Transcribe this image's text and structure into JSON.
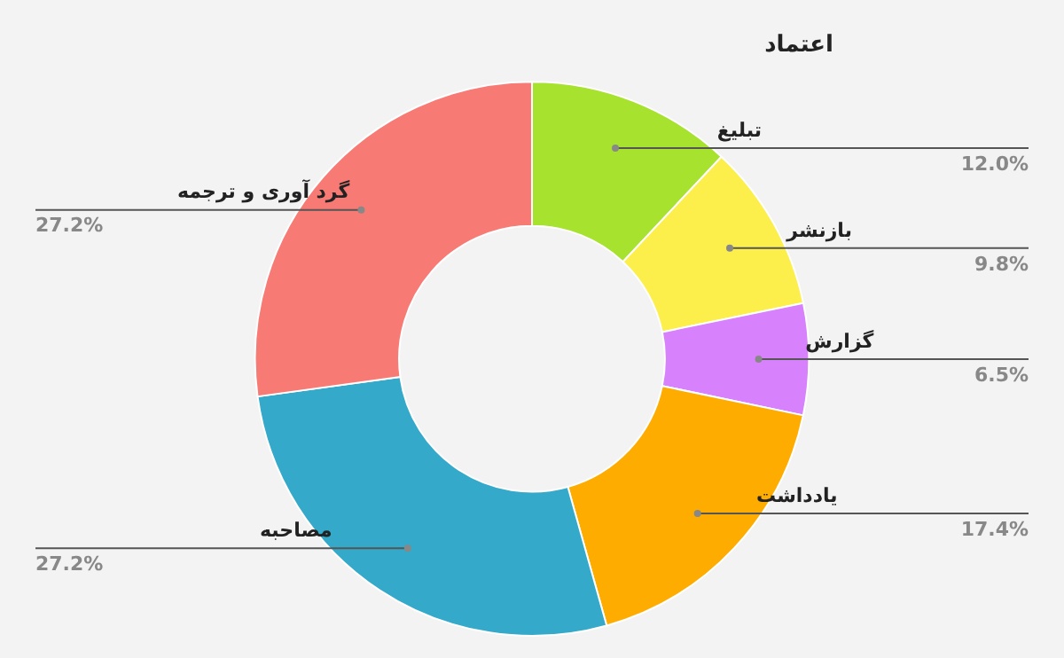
{
  "chart_data": {
    "type": "donut",
    "title": "اعتماد",
    "categories": [
      "تبلیغ",
      "بازنشر",
      "گزارش",
      "یادداشت",
      "مصاحبه",
      "گرد آوری و ترجمه"
    ],
    "values": [
      12.0,
      9.8,
      6.5,
      17.4,
      27.2,
      27.2
    ],
    "colors": [
      "#a6e22e",
      "#fcef4c",
      "#d782fc",
      "#ffac00",
      "#34a9c9",
      "#f87a75"
    ],
    "value_labels": [
      "12.0%",
      "9.8%",
      "6.5%",
      "17.4%",
      "27.2%",
      "27.2%"
    ],
    "legend": false
  }
}
